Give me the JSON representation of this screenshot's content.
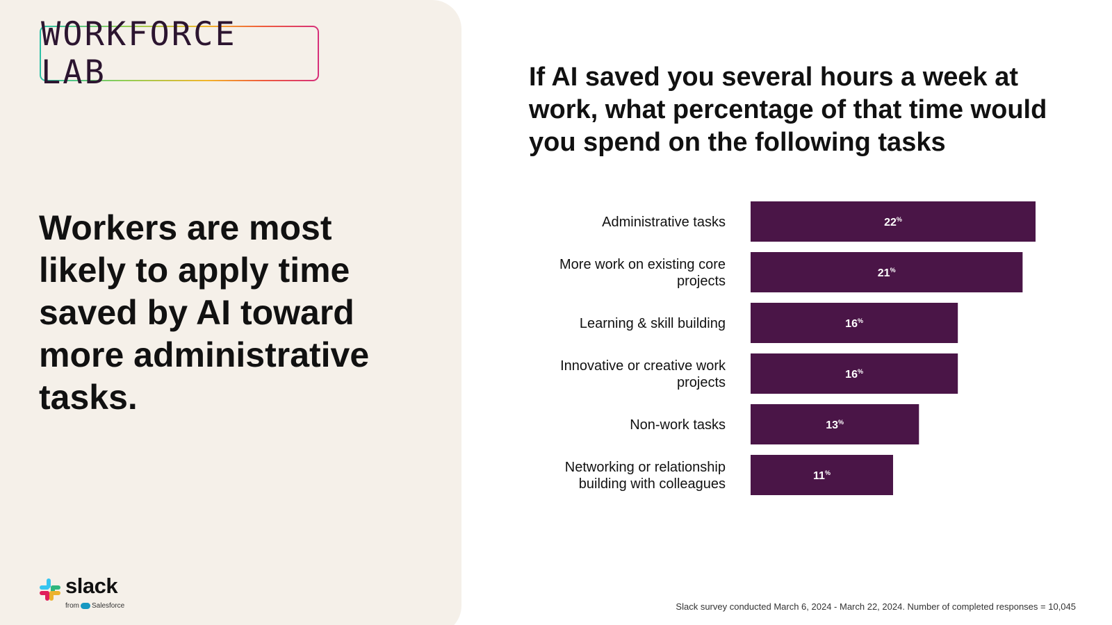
{
  "brand": {
    "logo_text": "WORKFORCE LAB",
    "company": "slack",
    "from_text": "from",
    "parent_company": "Salesforce"
  },
  "headline": "Workers are most likely to apply time saved by AI toward more administrative tasks.",
  "chart_data": {
    "type": "bar",
    "orientation": "horizontal",
    "title": "If AI saved you several hours a week at work, what percentage of that time would you spend on the following tasks",
    "categories": [
      [
        "Administrative tasks"
      ],
      [
        "More work on existing core",
        "projects"
      ],
      [
        "Learning & skill building"
      ],
      [
        "Innovative or creative work",
        "projects"
      ],
      [
        "Non-work tasks"
      ],
      [
        "Networking or relationship",
        "building with colleagues"
      ]
    ],
    "values": [
      22,
      21,
      16,
      16,
      13,
      11
    ],
    "value_suffix": "%",
    "xlim": [
      0,
      22
    ],
    "bar_color": "#4a1547",
    "label_color": "#ffffff"
  },
  "footnote": "Slack survey conducted March 6, 2024 - March 22, 2024. Number of completed responses = 10,045"
}
